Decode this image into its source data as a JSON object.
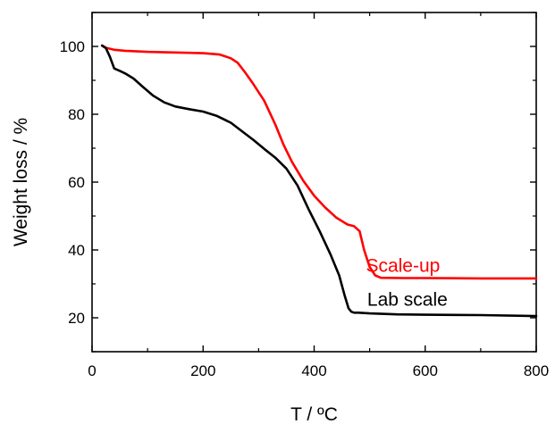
{
  "chart_data": {
    "type": "line",
    "title": "",
    "xlabel": "T / ºC",
    "ylabel": "Weight loss / %",
    "xlim": [
      0,
      800
    ],
    "ylim": [
      10,
      110
    ],
    "x_ticks": [
      0,
      200,
      400,
      600,
      800
    ],
    "y_ticks": [
      20,
      40,
      60,
      80,
      100
    ],
    "grid": false,
    "legend": "none",
    "series": [
      {
        "name": "Scale-up",
        "color": "#ff0000",
        "x": [
          18,
          25,
          40,
          60,
          100,
          150,
          200,
          230,
          250,
          262,
          275,
          290,
          310,
          330,
          345,
          360,
          380,
          400,
          420,
          440,
          460,
          472,
          482,
          490,
          500,
          510,
          520,
          560,
          600,
          700,
          800
        ],
        "y": [
          100.3,
          99.6,
          99.0,
          98.7,
          98.4,
          98.2,
          98.0,
          97.6,
          96.5,
          95.2,
          92.5,
          89.0,
          84.0,
          77.0,
          71.0,
          66.0,
          60.5,
          56.0,
          52.5,
          49.5,
          47.5,
          47.0,
          45.5,
          40.0,
          35.0,
          32.5,
          31.8,
          31.7,
          31.7,
          31.6,
          31.6
        ]
      },
      {
        "name": "Lab scale",
        "color": "#000000",
        "x": [
          18,
          25,
          32,
          40,
          50,
          60,
          75,
          90,
          110,
          130,
          150,
          175,
          200,
          225,
          250,
          270,
          290,
          310,
          330,
          350,
          370,
          390,
          410,
          430,
          445,
          455,
          462,
          467,
          472,
          480,
          500,
          550,
          600,
          700,
          800
        ],
        "y": [
          100.2,
          99.5,
          97.0,
          93.5,
          92.8,
          92.0,
          90.5,
          88.3,
          85.5,
          83.5,
          82.3,
          81.5,
          80.8,
          79.5,
          77.5,
          75.0,
          72.5,
          69.8,
          67.2,
          64.0,
          59.0,
          52.0,
          45.5,
          38.5,
          32.5,
          26.5,
          22.8,
          21.8,
          21.5,
          21.5,
          21.3,
          21.0,
          20.9,
          20.8,
          20.5
        ]
      }
    ],
    "annotations": [
      {
        "text": "Scale-up",
        "color": "#ff0000",
        "x": 560,
        "y": 33.5
      },
      {
        "text": "Lab scale",
        "color": "#000000",
        "x": 568,
        "y": 23.5
      }
    ]
  }
}
